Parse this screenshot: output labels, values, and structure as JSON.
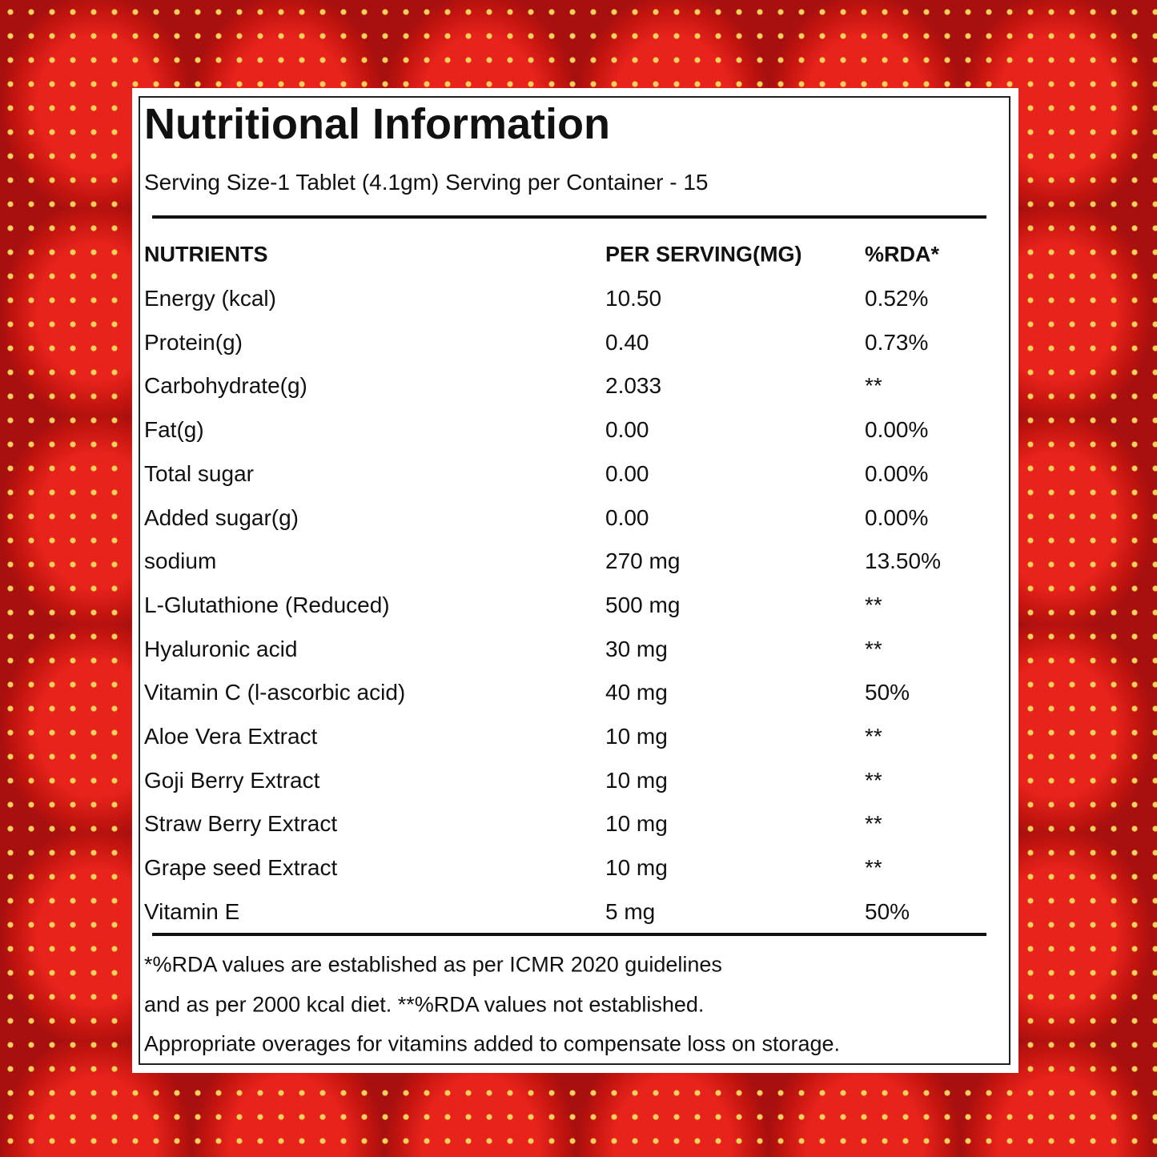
{
  "header": {
    "title": "Nutritional Information",
    "subtitle": "Serving Size-1 Tablet (4.1gm) Serving per Container - 15"
  },
  "table": {
    "columns": [
      "NUTRIENTS",
      "PER SERVING(MG)",
      "%RDA*"
    ],
    "rows": [
      [
        "Energy (kcal)",
        "10.50",
        "0.52%"
      ],
      [
        "Protein(g)",
        "0.40",
        "0.73%"
      ],
      [
        "Carbohydrate(g)",
        "2.033",
        "**"
      ],
      [
        "Fat(g)",
        "0.00",
        "0.00%"
      ],
      [
        "Total sugar",
        "0.00",
        "0.00%"
      ],
      [
        "Added sugar(g)",
        "0.00",
        "0.00%"
      ],
      [
        "sodium",
        "270 mg",
        "13.50%"
      ],
      [
        "L-Glutathione (Reduced)",
        "500 mg",
        "**"
      ],
      [
        "Hyaluronic acid",
        "30 mg",
        "**"
      ],
      [
        "Vitamin C (l-ascorbic acid)",
        "40 mg",
        "50%"
      ],
      [
        "Aloe Vera Extract",
        "10 mg",
        "**"
      ],
      [
        "Goji Berry Extract",
        "10 mg",
        "**"
      ],
      [
        "Straw Berry Extract",
        "10 mg",
        "**"
      ],
      [
        "Grape seed Extract",
        "10 mg",
        "**"
      ],
      [
        "Vitamin E",
        "5 mg",
        "50%"
      ]
    ]
  },
  "footer": {
    "lines": [
      "*%RDA values are established as per ICMR 2020 guidelines",
      "and as per 2000 kcal diet. **%RDA values not established.",
      "Appropriate overages for vitamins added to compensate loss on storage."
    ]
  }
}
